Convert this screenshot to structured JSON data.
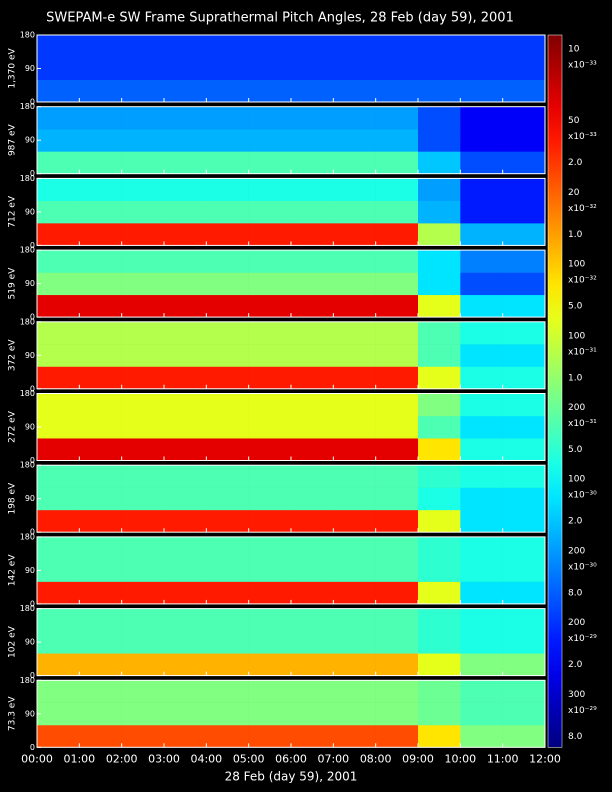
{
  "chart_data": {
    "type": "heatmap",
    "title": "SWEPAM-e SW Frame Suprathermal Pitch Angles, 28 Feb (day  59), 2001",
    "xlabel": "28 Feb (day  59), 2001",
    "xlim": [
      0,
      12
    ],
    "xticks": [
      {
        "value": 0,
        "label": "00:00"
      },
      {
        "value": 1,
        "label": "01:00"
      },
      {
        "value": 2,
        "label": "02:00"
      },
      {
        "value": 3,
        "label": "03:00"
      },
      {
        "value": 4,
        "label": "04:00"
      },
      {
        "value": 5,
        "label": "05:00"
      },
      {
        "value": 6,
        "label": "06:00"
      },
      {
        "value": 7,
        "label": "07:00"
      },
      {
        "value": 8,
        "label": "08:00"
      },
      {
        "value": 9,
        "label": "09:00"
      },
      {
        "value": 10,
        "label": "10:00"
      },
      {
        "value": 11,
        "label": "11:00"
      },
      {
        "value": 12,
        "label": "12:00"
      }
    ],
    "pa_bins": [
      0,
      60,
      120,
      180
    ],
    "panels": [
      {
        "ylabel": "1,370 eV",
        "ylim": [
          0,
          180
        ],
        "yticks": [
          0,
          90,
          180
        ],
        "colorbar": {
          "max": "10",
          "scale": "x10⁻³³"
        },
        "rows": [
          [
            0.22,
            0.22,
            0.22,
            0.22,
            0.22,
            0.22,
            0.22,
            0.22,
            0.22,
            0.22,
            0.22,
            0.22
          ],
          [
            0.18,
            0.18,
            0.18,
            0.18,
            0.18,
            0.18,
            0.18,
            0.18,
            0.18,
            0.18,
            0.18,
            0.18
          ],
          [
            0.18,
            0.18,
            0.18,
            0.18,
            0.18,
            0.18,
            0.18,
            0.18,
            0.18,
            0.18,
            0.18,
            0.18
          ]
        ]
      },
      {
        "ylabel": "987 eV",
        "ylim": [
          0,
          180
        ],
        "yticks": [
          0,
          90,
          180
        ],
        "colorbar": {
          "max": "50",
          "scale": "x10⁻³³",
          "min": "2.0"
        },
        "rows": [
          [
            0.45,
            0.45,
            0.45,
            0.45,
            0.45,
            0.45,
            0.45,
            0.45,
            0.45,
            0.32,
            0.2,
            0.2
          ],
          [
            0.3,
            0.3,
            0.3,
            0.3,
            0.3,
            0.3,
            0.3,
            0.3,
            0.3,
            0.2,
            0.12,
            0.12
          ],
          [
            0.28,
            0.28,
            0.28,
            0.28,
            0.28,
            0.28,
            0.28,
            0.28,
            0.28,
            0.2,
            0.12,
            0.12
          ]
        ]
      },
      {
        "ylabel": "712 eV",
        "ylim": [
          0,
          180
        ],
        "yticks": [
          0,
          90,
          180
        ],
        "colorbar": {
          "max": "20",
          "scale": "x10⁻³²",
          "min": "1.0"
        },
        "rows": [
          [
            0.85,
            0.85,
            0.85,
            0.85,
            0.85,
            0.85,
            0.85,
            0.85,
            0.85,
            0.55,
            0.3,
            0.3
          ],
          [
            0.45,
            0.45,
            0.45,
            0.45,
            0.45,
            0.45,
            0.45,
            0.45,
            0.45,
            0.3,
            0.15,
            0.15
          ],
          [
            0.4,
            0.4,
            0.4,
            0.4,
            0.4,
            0.4,
            0.4,
            0.4,
            0.4,
            0.28,
            0.15,
            0.15
          ]
        ]
      },
      {
        "ylabel": "519 eV",
        "ylim": [
          0,
          180
        ],
        "yticks": [
          0,
          90,
          180
        ],
        "colorbar": {
          "max": "100",
          "scale": "x10⁻³²",
          "min": "5.0"
        },
        "rows": [
          [
            0.9,
            0.9,
            0.9,
            0.9,
            0.9,
            0.9,
            0.9,
            0.9,
            0.9,
            0.6,
            0.35,
            0.35
          ],
          [
            0.5,
            0.5,
            0.5,
            0.5,
            0.5,
            0.5,
            0.5,
            0.5,
            0.5,
            0.35,
            0.2,
            0.2
          ],
          [
            0.45,
            0.45,
            0.45,
            0.45,
            0.45,
            0.45,
            0.45,
            0.45,
            0.45,
            0.35,
            0.25,
            0.25
          ]
        ]
      },
      {
        "ylabel": "372 eV",
        "ylim": [
          0,
          180
        ],
        "yticks": [
          0,
          90,
          180
        ],
        "colorbar": {
          "max": "100",
          "scale": "x10⁻³¹",
          "min": "1.0"
        },
        "rows": [
          [
            0.85,
            0.85,
            0.85,
            0.85,
            0.85,
            0.85,
            0.85,
            0.85,
            0.85,
            0.6,
            0.4,
            0.4
          ],
          [
            0.55,
            0.55,
            0.55,
            0.55,
            0.55,
            0.55,
            0.55,
            0.55,
            0.55,
            0.45,
            0.35,
            0.35
          ],
          [
            0.55,
            0.55,
            0.55,
            0.55,
            0.55,
            0.55,
            0.55,
            0.55,
            0.55,
            0.45,
            0.4,
            0.4
          ]
        ]
      },
      {
        "ylabel": "272 eV",
        "ylim": [
          0,
          180
        ],
        "yticks": [
          0,
          90,
          180
        ],
        "colorbar": {
          "max": "200",
          "scale": "x10⁻³¹",
          "min": "5.0"
        },
        "rows": [
          [
            0.9,
            0.9,
            0.9,
            0.9,
            0.9,
            0.9,
            0.9,
            0.9,
            0.9,
            0.65,
            0.4,
            0.4
          ],
          [
            0.6,
            0.6,
            0.6,
            0.6,
            0.6,
            0.6,
            0.6,
            0.6,
            0.6,
            0.45,
            0.35,
            0.35
          ],
          [
            0.6,
            0.6,
            0.6,
            0.6,
            0.6,
            0.6,
            0.6,
            0.6,
            0.6,
            0.5,
            0.4,
            0.4
          ]
        ]
      },
      {
        "ylabel": "198 eV",
        "ylim": [
          0,
          180
        ],
        "yticks": [
          0,
          90,
          180
        ],
        "colorbar": {
          "max": "100",
          "scale": "x10⁻³⁰",
          "min": "2.0"
        },
        "rows": [
          [
            0.85,
            0.85,
            0.85,
            0.85,
            0.85,
            0.85,
            0.85,
            0.85,
            0.85,
            0.6,
            0.35,
            0.35
          ],
          [
            0.45,
            0.45,
            0.45,
            0.45,
            0.45,
            0.45,
            0.45,
            0.45,
            0.45,
            0.4,
            0.35,
            0.35
          ],
          [
            0.45,
            0.45,
            0.45,
            0.45,
            0.45,
            0.45,
            0.45,
            0.45,
            0.45,
            0.42,
            0.4,
            0.4
          ]
        ]
      },
      {
        "ylabel": "142 eV",
        "ylim": [
          0,
          180
        ],
        "yticks": [
          0,
          90,
          180
        ],
        "colorbar": {
          "max": "200",
          "scale": "x10⁻³⁰",
          "min": "8.0"
        },
        "rows": [
          [
            0.85,
            0.85,
            0.85,
            0.85,
            0.85,
            0.85,
            0.85,
            0.85,
            0.85,
            0.6,
            0.35,
            0.35
          ],
          [
            0.45,
            0.45,
            0.45,
            0.45,
            0.45,
            0.45,
            0.45,
            0.45,
            0.45,
            0.42,
            0.4,
            0.4
          ],
          [
            0.45,
            0.45,
            0.45,
            0.45,
            0.45,
            0.45,
            0.45,
            0.45,
            0.45,
            0.42,
            0.4,
            0.4
          ]
        ]
      },
      {
        "ylabel": "102 eV",
        "ylim": [
          0,
          180
        ],
        "yticks": [
          0,
          90,
          180
        ],
        "colorbar": {
          "max": "200",
          "scale": "x10⁻²⁹",
          "min": "2.0"
        },
        "rows": [
          [
            0.7,
            0.7,
            0.7,
            0.7,
            0.7,
            0.7,
            0.7,
            0.7,
            0.7,
            0.6,
            0.5,
            0.5
          ],
          [
            0.45,
            0.45,
            0.45,
            0.45,
            0.45,
            0.45,
            0.45,
            0.45,
            0.45,
            0.42,
            0.4,
            0.4
          ],
          [
            0.45,
            0.45,
            0.45,
            0.45,
            0.45,
            0.45,
            0.45,
            0.45,
            0.45,
            0.42,
            0.4,
            0.4
          ]
        ]
      },
      {
        "ylabel": "73.3 eV",
        "ylim": [
          0,
          180
        ],
        "yticks": [
          0,
          90,
          180
        ],
        "colorbar": {
          "max": "300",
          "scale": "x10⁻²⁹",
          "min": "8.0"
        },
        "rows": [
          [
            0.8,
            0.8,
            0.8,
            0.8,
            0.8,
            0.8,
            0.8,
            0.8,
            0.8,
            0.65,
            0.5,
            0.5
          ],
          [
            0.5,
            0.5,
            0.5,
            0.5,
            0.5,
            0.5,
            0.5,
            0.5,
            0.5,
            0.48,
            0.45,
            0.45
          ],
          [
            0.5,
            0.5,
            0.5,
            0.5,
            0.5,
            0.5,
            0.5,
            0.5,
            0.5,
            0.48,
            0.45,
            0.45
          ]
        ]
      }
    ]
  }
}
